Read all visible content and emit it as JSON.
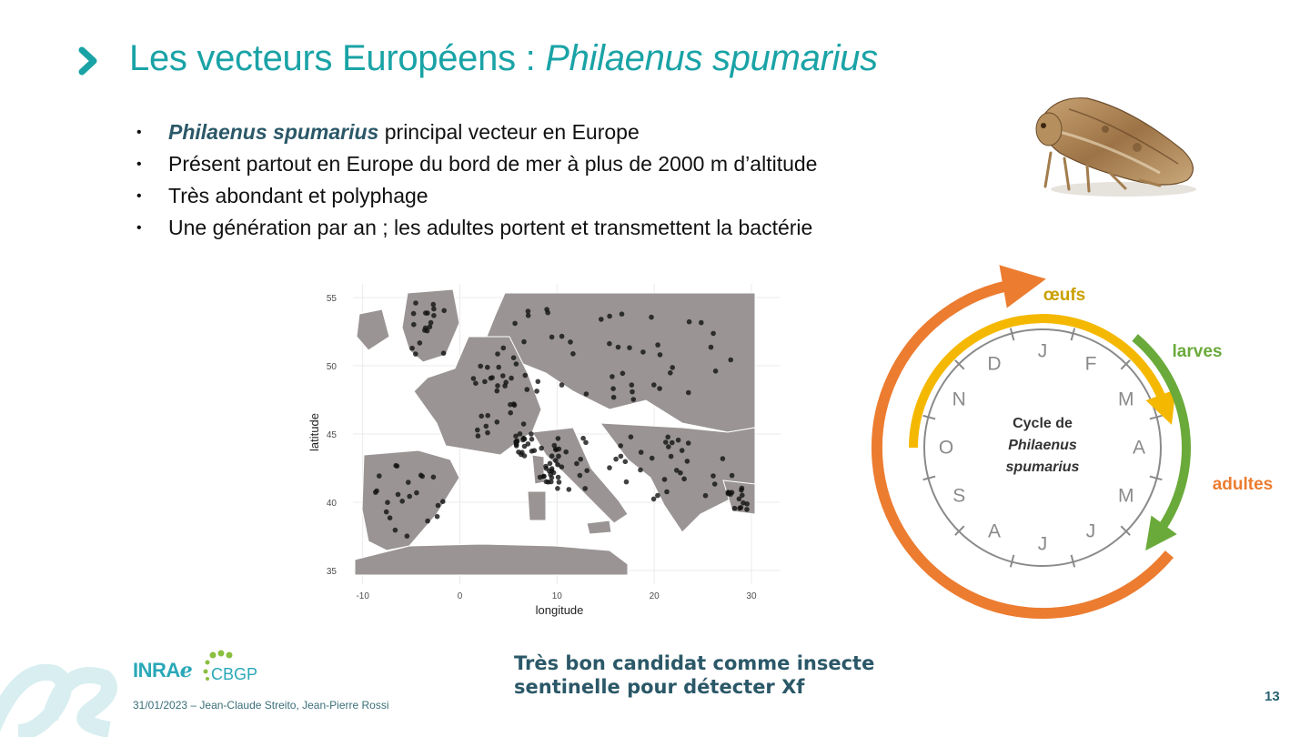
{
  "slide": {
    "title_plain": "Les vecteurs Européens : ",
    "title_italic": "Philaenus spumarius",
    "page_number": "13",
    "footer": "31/01/2023 – Jean-Claude Streito, Jean-Pierre Rossi",
    "conclusion_line1": "Très bon candidat comme insecte",
    "conclusion_line2": "sentinelle pour détecter Xf"
  },
  "bullets": [
    {
      "emph": "Philaenus spumarius",
      "text": " principal vecteur en Europe"
    },
    {
      "emph": "",
      "text": "Présent partout en Europe du bord de mer à plus de 2000 m d’altitude"
    },
    {
      "emph": "",
      "text": "Très abondant et polyphage"
    },
    {
      "emph": "",
      "text": "Une génération par an ; les adultes portent et transmettent la bactérie"
    }
  ],
  "bullet_symbol": "•",
  "logos": {
    "inrae": "INRAℯ",
    "cbgp": "CBGP"
  },
  "map": {
    "xlabel": "longitude",
    "ylabel": "latitude",
    "x_ticks": [
      "-10",
      "0",
      "10",
      "20",
      "30"
    ],
    "y_ticks": [
      "55",
      "50",
      "45",
      "40",
      "35"
    ],
    "xlim": [
      -11,
      33
    ],
    "ylim": [
      34,
      56
    ]
  },
  "cycle": {
    "center_line1": "Cycle de",
    "center_line2": "Philaenus",
    "center_line3": "spumarius",
    "months": [
      "J",
      "F",
      "M",
      "A",
      "M",
      "J",
      "J",
      "A",
      "S",
      "O",
      "N",
      "D"
    ],
    "stages": {
      "eggs": "œufs",
      "larvae": "larves",
      "adults": "adultes"
    },
    "colors": {
      "eggs": "#f5b800",
      "larvae": "#6aaa3a",
      "adults": "#ec7c30",
      "clock": "#8a8a8a"
    }
  },
  "colors": {
    "title": "#1aa3a6",
    "accent": "#2b5868",
    "land": "#9a9494"
  }
}
